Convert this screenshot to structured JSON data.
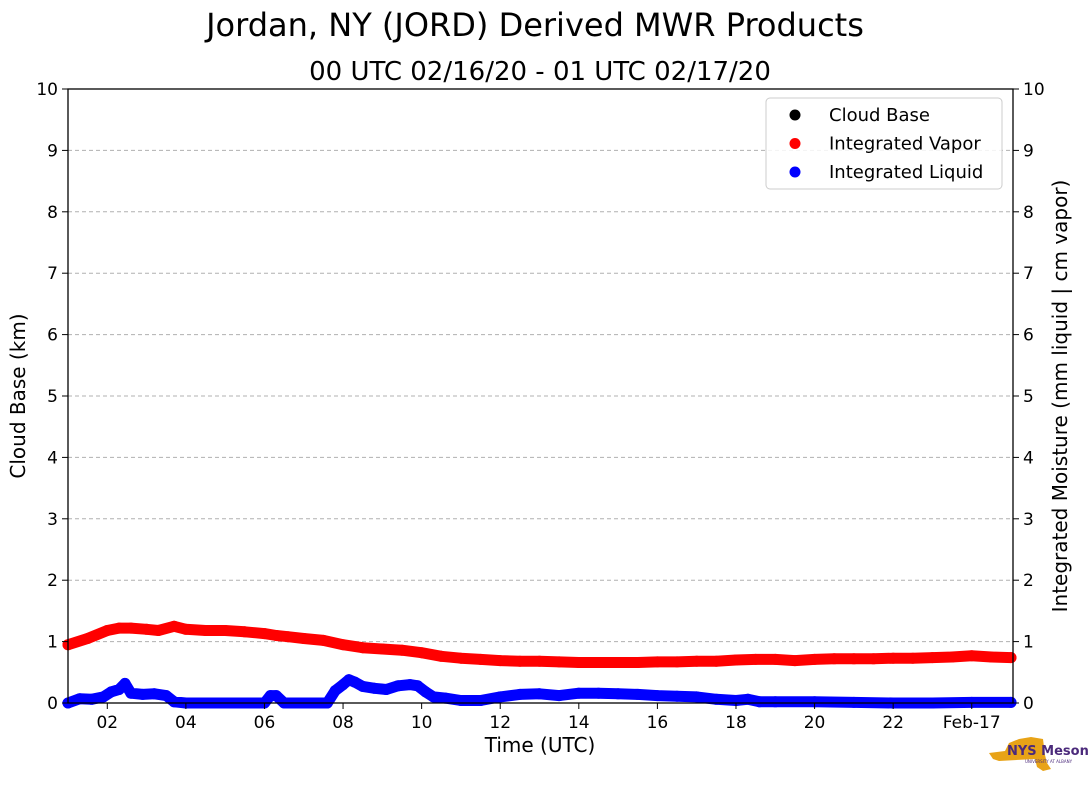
{
  "chart_data": {
    "type": "scatter",
    "title": "Jordan, NY (JORD) Derived MWR Products",
    "subtitle": "00 UTC 02/16/20 - 01 UTC 02/17/20",
    "xlabel": "Time (UTC)",
    "ylabel_left": "Cloud Base (km)",
    "ylabel_right": "Integrated Moisture (mm liquid | cm vapor)",
    "xlim": [
      1.0,
      25.05
    ],
    "ylim": [
      0,
      10
    ],
    "x_ticks": [
      {
        "x": 2,
        "label": "02"
      },
      {
        "x": 4,
        "label": "04"
      },
      {
        "x": 6,
        "label": "06"
      },
      {
        "x": 8,
        "label": "08"
      },
      {
        "x": 10,
        "label": "10"
      },
      {
        "x": 12,
        "label": "12"
      },
      {
        "x": 14,
        "label": "14"
      },
      {
        "x": 16,
        "label": "16"
      },
      {
        "x": 18,
        "label": "18"
      },
      {
        "x": 20,
        "label": "20"
      },
      {
        "x": 22,
        "label": "22"
      },
      {
        "x": 24,
        "label": "Feb-17"
      }
    ],
    "y_ticks": [
      "0",
      "1",
      "2",
      "3",
      "4",
      "5",
      "6",
      "7",
      "8",
      "9",
      "10"
    ],
    "grid": "horizontal-dashed",
    "legend_position": "top-right",
    "series": [
      {
        "name": "Cloud Base",
        "color": "#000000",
        "x": [],
        "y": []
      },
      {
        "name": "Integrated Vapor",
        "color": "#ff0000",
        "x": [
          1.0,
          1.5,
          2.0,
          2.3,
          2.6,
          3.0,
          3.3,
          3.7,
          4.0,
          4.5,
          5.0,
          5.5,
          6.0,
          6.3,
          6.6,
          7.0,
          7.5,
          8.0,
          8.5,
          9.0,
          9.5,
          10.0,
          10.5,
          11.0,
          11.5,
          12.0,
          12.5,
          13.0,
          13.5,
          14.0,
          14.5,
          15.0,
          15.5,
          16.0,
          16.5,
          17.0,
          17.5,
          18.0,
          18.5,
          19.0,
          19.5,
          20.0,
          20.5,
          21.0,
          21.5,
          22.0,
          22.5,
          23.0,
          23.5,
          24.0,
          24.5,
          25.0
        ],
        "y": [
          0.95,
          1.05,
          1.18,
          1.22,
          1.22,
          1.2,
          1.18,
          1.25,
          1.2,
          1.18,
          1.18,
          1.16,
          1.13,
          1.1,
          1.08,
          1.05,
          1.02,
          0.95,
          0.9,
          0.88,
          0.86,
          0.82,
          0.76,
          0.73,
          0.71,
          0.69,
          0.68,
          0.68,
          0.67,
          0.66,
          0.66,
          0.66,
          0.66,
          0.67,
          0.67,
          0.68,
          0.68,
          0.7,
          0.71,
          0.71,
          0.69,
          0.71,
          0.72,
          0.72,
          0.72,
          0.73,
          0.73,
          0.74,
          0.75,
          0.77,
          0.75,
          0.74
        ]
      },
      {
        "name": "Integrated Liquid",
        "color": "#0000ff",
        "x": [
          1.0,
          1.3,
          1.6,
          1.9,
          2.1,
          2.3,
          2.45,
          2.6,
          2.9,
          3.2,
          3.5,
          3.7,
          4.0,
          5.0,
          6.0,
          6.15,
          6.3,
          6.5,
          7.0,
          7.6,
          7.8,
          8.0,
          8.15,
          8.3,
          8.5,
          8.8,
          9.1,
          9.4,
          9.7,
          9.9,
          10.1,
          10.3,
          10.6,
          11.0,
          11.5,
          12.0,
          12.5,
          13.0,
          13.5,
          14.0,
          14.5,
          15.0,
          15.5,
          16.0,
          16.5,
          17.0,
          17.5,
          18.0,
          18.3,
          18.6,
          19.0,
          20.0,
          21.0,
          22.0,
          23.0,
          24.0,
          25.0
        ],
        "y": [
          0.0,
          0.07,
          0.06,
          0.1,
          0.18,
          0.22,
          0.32,
          0.16,
          0.14,
          0.15,
          0.12,
          0.02,
          0.0,
          0.0,
          0.0,
          0.12,
          0.12,
          0.0,
          0.0,
          0.0,
          0.2,
          0.3,
          0.38,
          0.34,
          0.27,
          0.24,
          0.22,
          0.28,
          0.3,
          0.28,
          0.18,
          0.1,
          0.08,
          0.04,
          0.04,
          0.1,
          0.14,
          0.15,
          0.12,
          0.16,
          0.16,
          0.15,
          0.14,
          0.12,
          0.11,
          0.1,
          0.06,
          0.04,
          0.06,
          0.02,
          0.02,
          0.02,
          0.01,
          0.0,
          0.0,
          0.01,
          0.01
        ]
      }
    ]
  },
  "logo": {
    "text": "NYS Mesonet",
    "sub": "UNIVERSITY AT ALBANY",
    "colors": {
      "state": "#e8a317",
      "text": "#4b2a7b"
    }
  }
}
